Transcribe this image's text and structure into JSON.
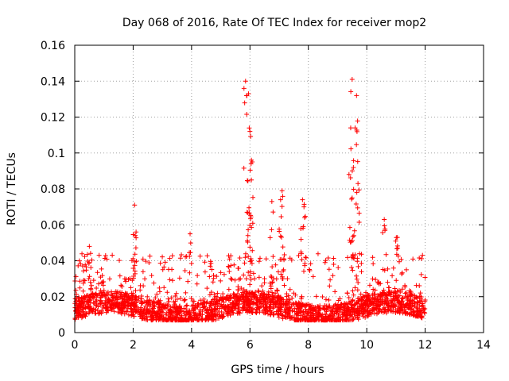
{
  "chart_data": {
    "type": "scatter",
    "title": "Day 068 of 2016, Rate Of TEC Index for receiver mop2",
    "xlabel": "GPS time / hours",
    "ylabel": "ROTI / TECUs",
    "xlim": [
      0,
      14
    ],
    "ylim": [
      0,
      0.16
    ],
    "grid": true,
    "marker": "+",
    "x_ticks": [
      "0",
      "2",
      "4",
      "6",
      "8",
      "10",
      "12",
      "14"
    ],
    "y_ticks": [
      "0",
      "0.02",
      "0.04",
      "0.06",
      "0.08",
      "0.1",
      "0.12",
      "0.14",
      "0.16"
    ],
    "series": [
      {
        "name": "mop2 ROTI",
        "color": "#ff0000",
        "x_range_hours": [
          0,
          12
        ],
        "baseline_min": 0.007,
        "baseline_max": 0.03,
        "notable_points": [
          {
            "x": 0.5,
            "y": 0.048
          },
          {
            "x": 2.05,
            "y": 0.071
          },
          {
            "x": 2.1,
            "y": 0.056
          },
          {
            "x": 3.95,
            "y": 0.055
          },
          {
            "x": 5.85,
            "y": 0.14
          },
          {
            "x": 5.95,
            "y": 0.133
          },
          {
            "x": 6.0,
            "y": 0.112
          },
          {
            "x": 6.05,
            "y": 0.096
          },
          {
            "x": 6.05,
            "y": 0.085
          },
          {
            "x": 5.9,
            "y": 0.067
          },
          {
            "x": 6.75,
            "y": 0.073
          },
          {
            "x": 7.1,
            "y": 0.079
          },
          {
            "x": 7.05,
            "y": 0.074
          },
          {
            "x": 7.8,
            "y": 0.074
          },
          {
            "x": 7.85,
            "y": 0.07
          },
          {
            "x": 9.5,
            "y": 0.141
          },
          {
            "x": 9.65,
            "y": 0.132
          },
          {
            "x": 9.6,
            "y": 0.114
          },
          {
            "x": 9.45,
            "y": 0.114
          },
          {
            "x": 9.5,
            "y": 0.075
          },
          {
            "x": 9.7,
            "y": 0.083
          },
          {
            "x": 10.6,
            "y": 0.063
          },
          {
            "x": 11.05,
            "y": 0.053
          }
        ]
      }
    ]
  }
}
